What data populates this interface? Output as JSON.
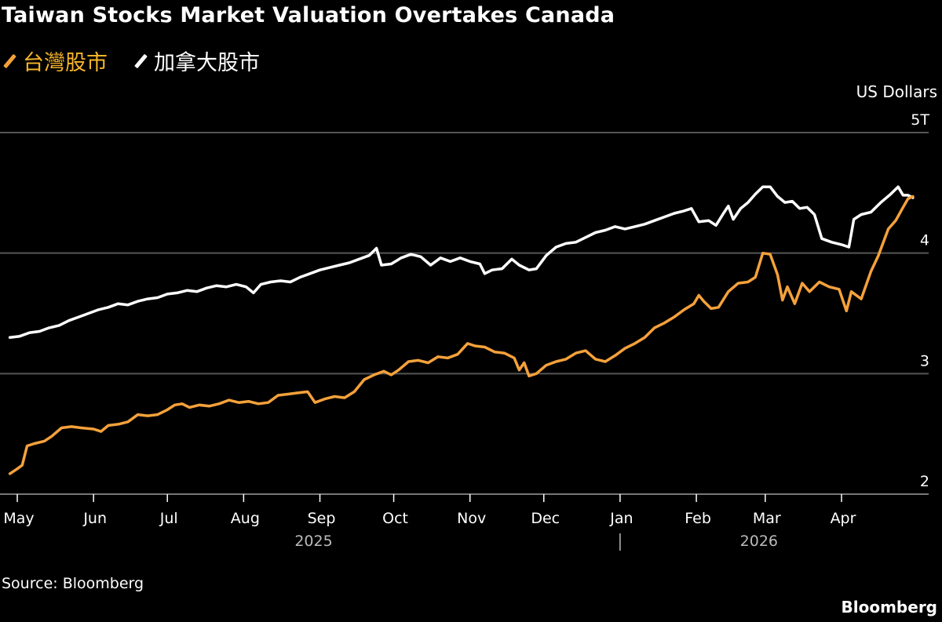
{
  "chart_data": {
    "type": "line",
    "title": "Taiwan Stocks Market Valuation Overtakes Canada",
    "ylabel": "US Dollars",
    "ylim": [
      2,
      5
    ],
    "yticks": [
      2,
      3,
      4,
      5
    ],
    "ytick_labels": [
      "2",
      "3",
      "4",
      "5T"
    ],
    "grid": true,
    "legend_placement": "top-left",
    "x_start": "2025-04-28",
    "x_end": "2026-04-30",
    "month_ticks": [
      {
        "date": "2025-05-01",
        "label": "May"
      },
      {
        "date": "2025-06-01",
        "label": "Jun"
      },
      {
        "date": "2025-07-01",
        "label": "Jul"
      },
      {
        "date": "2025-08-01",
        "label": "Aug"
      },
      {
        "date": "2025-09-01",
        "label": "Sep"
      },
      {
        "date": "2025-10-01",
        "label": "Oct"
      },
      {
        "date": "2025-11-01",
        "label": "Nov"
      },
      {
        "date": "2025-12-01",
        "label": "Dec"
      },
      {
        "date": "2026-01-01",
        "label": "Jan"
      },
      {
        "date": "2026-02-01",
        "label": "Feb"
      },
      {
        "date": "2026-03-01",
        "label": "Mar"
      },
      {
        "date": "2026-04-01",
        "label": "Apr"
      }
    ],
    "year_labels": [
      {
        "date": "2025-09-01",
        "label": "2025"
      },
      {
        "date": "2026-03-01",
        "label": "2026"
      }
    ],
    "year_divider": "2026-01-01",
    "series": [
      {
        "name": "台灣股市",
        "color": "#f5a13b",
        "points": [
          [
            "2025-04-28",
            2.17
          ],
          [
            "2025-05-01",
            2.21
          ],
          [
            "2025-05-03",
            2.24
          ],
          [
            "2025-05-05",
            2.4
          ],
          [
            "2025-05-08",
            2.42
          ],
          [
            "2025-05-12",
            2.44
          ],
          [
            "2025-05-15",
            2.48
          ],
          [
            "2025-05-19",
            2.55
          ],
          [
            "2025-05-23",
            2.56
          ],
          [
            "2025-05-27",
            2.55
          ],
          [
            "2025-06-01",
            2.54
          ],
          [
            "2025-06-04",
            2.52
          ],
          [
            "2025-06-07",
            2.57
          ],
          [
            "2025-06-11",
            2.58
          ],
          [
            "2025-06-15",
            2.6
          ],
          [
            "2025-06-19",
            2.66
          ],
          [
            "2025-06-23",
            2.65
          ],
          [
            "2025-06-27",
            2.66
          ],
          [
            "2025-07-01",
            2.7
          ],
          [
            "2025-07-04",
            2.74
          ],
          [
            "2025-07-07",
            2.75
          ],
          [
            "2025-07-10",
            2.72
          ],
          [
            "2025-07-14",
            2.74
          ],
          [
            "2025-07-18",
            2.73
          ],
          [
            "2025-07-22",
            2.75
          ],
          [
            "2025-07-26",
            2.78
          ],
          [
            "2025-07-30",
            2.76
          ],
          [
            "2025-08-03",
            2.77
          ],
          [
            "2025-08-07",
            2.75
          ],
          [
            "2025-08-11",
            2.76
          ],
          [
            "2025-08-15",
            2.82
          ],
          [
            "2025-08-19",
            2.83
          ],
          [
            "2025-08-23",
            2.84
          ],
          [
            "2025-08-27",
            2.85
          ],
          [
            "2025-08-30",
            2.76
          ],
          [
            "2025-09-03",
            2.79
          ],
          [
            "2025-09-07",
            2.81
          ],
          [
            "2025-09-11",
            2.8
          ],
          [
            "2025-09-15",
            2.85
          ],
          [
            "2025-09-19",
            2.95
          ],
          [
            "2025-09-23",
            2.99
          ],
          [
            "2025-09-27",
            3.02
          ],
          [
            "2025-09-30",
            2.99
          ],
          [
            "2025-10-03",
            3.03
          ],
          [
            "2025-10-07",
            3.1
          ],
          [
            "2025-10-11",
            3.11
          ],
          [
            "2025-10-15",
            3.09
          ],
          [
            "2025-10-19",
            3.14
          ],
          [
            "2025-10-23",
            3.13
          ],
          [
            "2025-10-27",
            3.16
          ],
          [
            "2025-10-31",
            3.25
          ],
          [
            "2025-11-03",
            3.23
          ],
          [
            "2025-11-07",
            3.22
          ],
          [
            "2025-11-11",
            3.18
          ],
          [
            "2025-11-15",
            3.17
          ],
          [
            "2025-11-19",
            3.13
          ],
          [
            "2025-11-21",
            3.03
          ],
          [
            "2025-11-23",
            3.09
          ],
          [
            "2025-11-25",
            2.98
          ],
          [
            "2025-11-28",
            3.0
          ],
          [
            "2025-12-02",
            3.07
          ],
          [
            "2025-12-06",
            3.1
          ],
          [
            "2025-12-10",
            3.12
          ],
          [
            "2025-12-14",
            3.17
          ],
          [
            "2025-12-18",
            3.19
          ],
          [
            "2025-12-22",
            3.12
          ],
          [
            "2025-12-26",
            3.1
          ],
          [
            "2025-12-30",
            3.15
          ],
          [
            "2026-01-03",
            3.21
          ],
          [
            "2026-01-07",
            3.25
          ],
          [
            "2026-01-11",
            3.3
          ],
          [
            "2026-01-15",
            3.38
          ],
          [
            "2026-01-19",
            3.42
          ],
          [
            "2026-01-23",
            3.47
          ],
          [
            "2026-01-27",
            3.53
          ],
          [
            "2026-01-31",
            3.58
          ],
          [
            "2026-02-02",
            3.65
          ],
          [
            "2026-02-04",
            3.6
          ],
          [
            "2026-02-07",
            3.54
          ],
          [
            "2026-02-10",
            3.55
          ],
          [
            "2026-02-14",
            3.68
          ],
          [
            "2026-02-18",
            3.75
          ],
          [
            "2026-02-22",
            3.76
          ],
          [
            "2026-02-25",
            3.8
          ],
          [
            "2026-02-28",
            4.0
          ],
          [
            "2026-03-03",
            3.99
          ],
          [
            "2026-03-06",
            3.82
          ],
          [
            "2026-03-08",
            3.61
          ],
          [
            "2026-03-10",
            3.72
          ],
          [
            "2026-03-13",
            3.58
          ],
          [
            "2026-03-16",
            3.75
          ],
          [
            "2026-03-19",
            3.68
          ],
          [
            "2026-03-23",
            3.76
          ],
          [
            "2026-03-27",
            3.72
          ],
          [
            "2026-03-31",
            3.7
          ],
          [
            "2026-04-03",
            3.52
          ],
          [
            "2026-04-05",
            3.68
          ],
          [
            "2026-04-09",
            3.62
          ],
          [
            "2026-04-13",
            3.85
          ],
          [
            "2026-04-16",
            3.98
          ],
          [
            "2026-04-20",
            4.2
          ],
          [
            "2026-04-23",
            4.27
          ],
          [
            "2026-04-26",
            4.38
          ],
          [
            "2026-04-28",
            4.45
          ],
          [
            "2026-04-30",
            4.47
          ]
        ]
      },
      {
        "name": "加拿大股市",
        "color": "#ffffff",
        "points": [
          [
            "2025-04-28",
            3.3
          ],
          [
            "2025-05-02",
            3.31
          ],
          [
            "2025-05-06",
            3.34
          ],
          [
            "2025-05-10",
            3.35
          ],
          [
            "2025-05-14",
            3.38
          ],
          [
            "2025-05-18",
            3.4
          ],
          [
            "2025-05-22",
            3.44
          ],
          [
            "2025-05-26",
            3.47
          ],
          [
            "2025-05-30",
            3.5
          ],
          [
            "2025-06-03",
            3.53
          ],
          [
            "2025-06-07",
            3.55
          ],
          [
            "2025-06-11",
            3.58
          ],
          [
            "2025-06-15",
            3.57
          ],
          [
            "2025-06-19",
            3.6
          ],
          [
            "2025-06-23",
            3.62
          ],
          [
            "2025-06-27",
            3.63
          ],
          [
            "2025-07-01",
            3.66
          ],
          [
            "2025-07-05",
            3.67
          ],
          [
            "2025-07-09",
            3.69
          ],
          [
            "2025-07-13",
            3.68
          ],
          [
            "2025-07-17",
            3.71
          ],
          [
            "2025-07-21",
            3.73
          ],
          [
            "2025-07-25",
            3.72
          ],
          [
            "2025-07-29",
            3.74
          ],
          [
            "2025-08-02",
            3.72
          ],
          [
            "2025-08-05",
            3.67
          ],
          [
            "2025-08-08",
            3.74
          ],
          [
            "2025-08-12",
            3.76
          ],
          [
            "2025-08-16",
            3.77
          ],
          [
            "2025-08-20",
            3.76
          ],
          [
            "2025-08-24",
            3.8
          ],
          [
            "2025-08-28",
            3.83
          ],
          [
            "2025-09-01",
            3.86
          ],
          [
            "2025-09-05",
            3.88
          ],
          [
            "2025-09-09",
            3.9
          ],
          [
            "2025-09-13",
            3.92
          ],
          [
            "2025-09-17",
            3.95
          ],
          [
            "2025-09-21",
            3.98
          ],
          [
            "2025-09-24",
            4.04
          ],
          [
            "2025-09-26",
            3.9
          ],
          [
            "2025-09-30",
            3.91
          ],
          [
            "2025-10-04",
            3.96
          ],
          [
            "2025-10-08",
            3.99
          ],
          [
            "2025-10-12",
            3.97
          ],
          [
            "2025-10-16",
            3.9
          ],
          [
            "2025-10-20",
            3.96
          ],
          [
            "2025-10-24",
            3.93
          ],
          [
            "2025-10-28",
            3.96
          ],
          [
            "2025-11-01",
            3.93
          ],
          [
            "2025-11-05",
            3.91
          ],
          [
            "2025-11-07",
            3.83
          ],
          [
            "2025-11-10",
            3.86
          ],
          [
            "2025-11-14",
            3.87
          ],
          [
            "2025-11-18",
            3.95
          ],
          [
            "2025-11-21",
            3.9
          ],
          [
            "2025-11-25",
            3.86
          ],
          [
            "2025-11-28",
            3.87
          ],
          [
            "2025-12-02",
            3.98
          ],
          [
            "2025-12-06",
            4.05
          ],
          [
            "2025-12-10",
            4.08
          ],
          [
            "2025-12-14",
            4.09
          ],
          [
            "2025-12-18",
            4.13
          ],
          [
            "2025-12-22",
            4.17
          ],
          [
            "2025-12-26",
            4.19
          ],
          [
            "2025-12-30",
            4.22
          ],
          [
            "2026-01-03",
            4.2
          ],
          [
            "2026-01-07",
            4.22
          ],
          [
            "2026-01-11",
            4.24
          ],
          [
            "2026-01-15",
            4.27
          ],
          [
            "2026-01-19",
            4.3
          ],
          [
            "2026-01-23",
            4.33
          ],
          [
            "2026-01-27",
            4.35
          ],
          [
            "2026-01-30",
            4.37
          ],
          [
            "2026-02-02",
            4.26
          ],
          [
            "2026-02-06",
            4.27
          ],
          [
            "2026-02-09",
            4.23
          ],
          [
            "2026-02-12",
            4.33
          ],
          [
            "2026-02-14",
            4.39
          ],
          [
            "2026-02-16",
            4.28
          ],
          [
            "2026-02-19",
            4.37
          ],
          [
            "2026-02-22",
            4.42
          ],
          [
            "2026-02-25",
            4.49
          ],
          [
            "2026-02-28",
            4.55
          ],
          [
            "2026-03-03",
            4.55
          ],
          [
            "2026-03-06",
            4.47
          ],
          [
            "2026-03-09",
            4.42
          ],
          [
            "2026-03-12",
            4.43
          ],
          [
            "2026-03-15",
            4.37
          ],
          [
            "2026-03-18",
            4.38
          ],
          [
            "2026-03-21",
            4.32
          ],
          [
            "2026-03-24",
            4.12
          ],
          [
            "2026-03-28",
            4.09
          ],
          [
            "2026-04-01",
            4.07
          ],
          [
            "2026-04-04",
            4.05
          ],
          [
            "2026-04-06",
            4.28
          ],
          [
            "2026-04-09",
            4.32
          ],
          [
            "2026-04-13",
            4.34
          ],
          [
            "2026-04-17",
            4.42
          ],
          [
            "2026-04-21",
            4.49
          ],
          [
            "2026-04-24",
            4.55
          ],
          [
            "2026-04-26",
            4.48
          ],
          [
            "2026-04-28",
            4.48
          ],
          [
            "2026-04-30",
            4.46
          ]
        ]
      }
    ]
  },
  "legend": [
    {
      "label": "台灣股市",
      "color": "#f5a13b",
      "text_color": "#f7b52a"
    },
    {
      "label": "加拿大股市",
      "color": "#ffffff",
      "text_color": "#ffffff"
    }
  ],
  "footer": {
    "source": "Source: Bloomberg",
    "brand": "Bloomberg"
  }
}
